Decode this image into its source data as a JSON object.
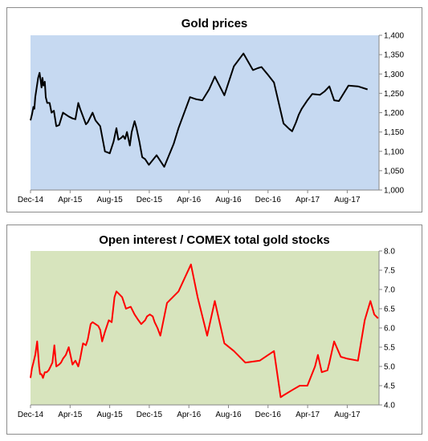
{
  "chart_data": [
    {
      "type": "line",
      "title": "Gold prices",
      "xlabel": "",
      "ylabel": "",
      "x_tick_labels": [
        "Dec-14",
        "Apr-15",
        "Aug-15",
        "Dec-15",
        "Apr-16",
        "Aug-16",
        "Dec-16",
        "Apr-17",
        "Aug-17"
      ],
      "xlim": [
        0,
        36.5
      ],
      "ylim": [
        1000,
        1400
      ],
      "y_ticks": [
        1000,
        1050,
        1100,
        1150,
        1200,
        1250,
        1300,
        1350,
        1400
      ],
      "y_tick_labels": [
        "1,000",
        "1,050",
        "1,100",
        "1,150",
        "1,200",
        "1,250",
        "1,300",
        "1,350",
        "1,400"
      ],
      "plot_background": "#c6d9f1",
      "grid": false,
      "series": [
        {
          "color": "#000000",
          "x": [
            0,
            0.15,
            0.3,
            0.4,
            0.5,
            0.65,
            0.8,
            0.95,
            1.05,
            1.15,
            1.25,
            1.35,
            1.5,
            1.6,
            1.75,
            2.0,
            2.2,
            2.45,
            2.7,
            3.0,
            3.4,
            4.0,
            4.4,
            4.7,
            5.0,
            5.2,
            5.5,
            5.8,
            6.0,
            6.5,
            6.8,
            7.3,
            7.8,
            8.3,
            8.7,
            9.0,
            9.2,
            9.5,
            9.7,
            9.9,
            10.1,
            10.4,
            10.6,
            10.9,
            11.1,
            11.4,
            11.7,
            12.0,
            12.4,
            13.2,
            14.0,
            15.0,
            15.5,
            16.7,
            17.3,
            18.0,
            18.7,
            19.3,
            20.3,
            21.3,
            22.3,
            23.3,
            23.8,
            24.2,
            24.8,
            25.5,
            26.5,
            27.1,
            27.4,
            27.8,
            28.1,
            28.4,
            29.0,
            29.5,
            30.3,
            30.8,
            31.3,
            31.8,
            32.3,
            33.3,
            34.3,
            35.3
          ],
          "values": [
            1180,
            1195,
            1215,
            1210,
            1240,
            1265,
            1290,
            1303,
            1285,
            1265,
            1290,
            1270,
            1280,
            1240,
            1225,
            1225,
            1200,
            1205,
            1165,
            1168,
            1200,
            1190,
            1185,
            1183,
            1225,
            1210,
            1190,
            1170,
            1175,
            1200,
            1180,
            1165,
            1100,
            1095,
            1125,
            1160,
            1130,
            1135,
            1140,
            1132,
            1150,
            1115,
            1150,
            1178,
            1160,
            1125,
            1085,
            1080,
            1065,
            1090,
            1060,
            1120,
            1160,
            1240,
            1235,
            1232,
            1260,
            1293,
            1245,
            1320,
            1353,
            1310,
            1315,
            1318,
            1300,
            1278,
            1172,
            1158,
            1152,
            1175,
            1195,
            1210,
            1232,
            1248,
            1246,
            1255,
            1268,
            1232,
            1230,
            1270,
            1268,
            1260
          ]
        }
      ]
    },
    {
      "type": "line",
      "title": "Open interest / COMEX total gold stocks",
      "xlabel": "",
      "ylabel": "",
      "x_tick_labels": [
        "Dec-14",
        "Apr-15",
        "Aug-15",
        "Dec-15",
        "Apr-16",
        "Aug-16",
        "Dec-16",
        "Apr-17",
        "Aug-17"
      ],
      "xlim": [
        0,
        36.5
      ],
      "ylim": [
        4.0,
        8.0
      ],
      "y_ticks": [
        4.0,
        4.5,
        5.0,
        5.5,
        6.0,
        6.5,
        7.0,
        7.5,
        8.0
      ],
      "y_tick_labels": [
        "4.0",
        "4.5",
        "5.0",
        "5.5",
        "6.0",
        "6.5",
        "7.0",
        "7.5",
        "8.0"
      ],
      "plot_background": "#d7e4bd",
      "grid": false,
      "series": [
        {
          "color": "#ff0000",
          "x": [
            0,
            0.15,
            0.3,
            0.5,
            0.7,
            0.9,
            1.0,
            1.15,
            1.3,
            1.5,
            1.7,
            1.9,
            2.1,
            2.3,
            2.5,
            2.7,
            3.0,
            3.2,
            3.4,
            3.7,
            4.0,
            4.4,
            4.7,
            5.0,
            5.2,
            5.5,
            5.8,
            6.0,
            6.3,
            6.5,
            6.8,
            7.1,
            7.3,
            7.5,
            7.8,
            8.2,
            8.5,
            8.8,
            9.0,
            9.2,
            9.6,
            10.0,
            10.5,
            10.9,
            11.3,
            11.6,
            11.8,
            12.0,
            12.2,
            12.5,
            12.8,
            13.0,
            13.3,
            13.6,
            14.3,
            15.5,
            16.8,
            17.5,
            18.5,
            19.3,
            20.3,
            21.3,
            22.5,
            24.0,
            25.5,
            26.2,
            26.5,
            27.5,
            28.2,
            29.0,
            29.8,
            30.1,
            30.5,
            31.1,
            31.3,
            31.8,
            32.5,
            33.2,
            34.3,
            35.0,
            35.6,
            36.0,
            36.4
          ],
          "values": [
            4.7,
            4.95,
            5.1,
            5.3,
            5.65,
            5.0,
            4.8,
            4.8,
            4.7,
            4.85,
            4.85,
            4.9,
            5.0,
            5.1,
            5.55,
            5.0,
            5.05,
            5.1,
            5.2,
            5.3,
            5.5,
            5.05,
            5.15,
            5.0,
            5.2,
            5.6,
            5.55,
            5.7,
            6.1,
            6.15,
            6.1,
            6.05,
            5.95,
            5.65,
            5.9,
            6.2,
            6.15,
            6.8,
            6.95,
            6.9,
            6.8,
            6.5,
            6.55,
            6.35,
            6.2,
            6.1,
            6.15,
            6.2,
            6.3,
            6.35,
            6.3,
            6.15,
            6.0,
            5.8,
            6.65,
            6.95,
            7.65,
            6.8,
            5.8,
            6.7,
            5.6,
            5.4,
            5.1,
            5.15,
            5.4,
            4.2,
            4.25,
            4.4,
            4.5,
            4.5,
            5.0,
            5.3,
            4.85,
            4.9,
            5.1,
            5.65,
            5.25,
            5.2,
            5.15,
            6.2,
            6.7,
            6.35,
            6.25
          ]
        }
      ]
    }
  ]
}
